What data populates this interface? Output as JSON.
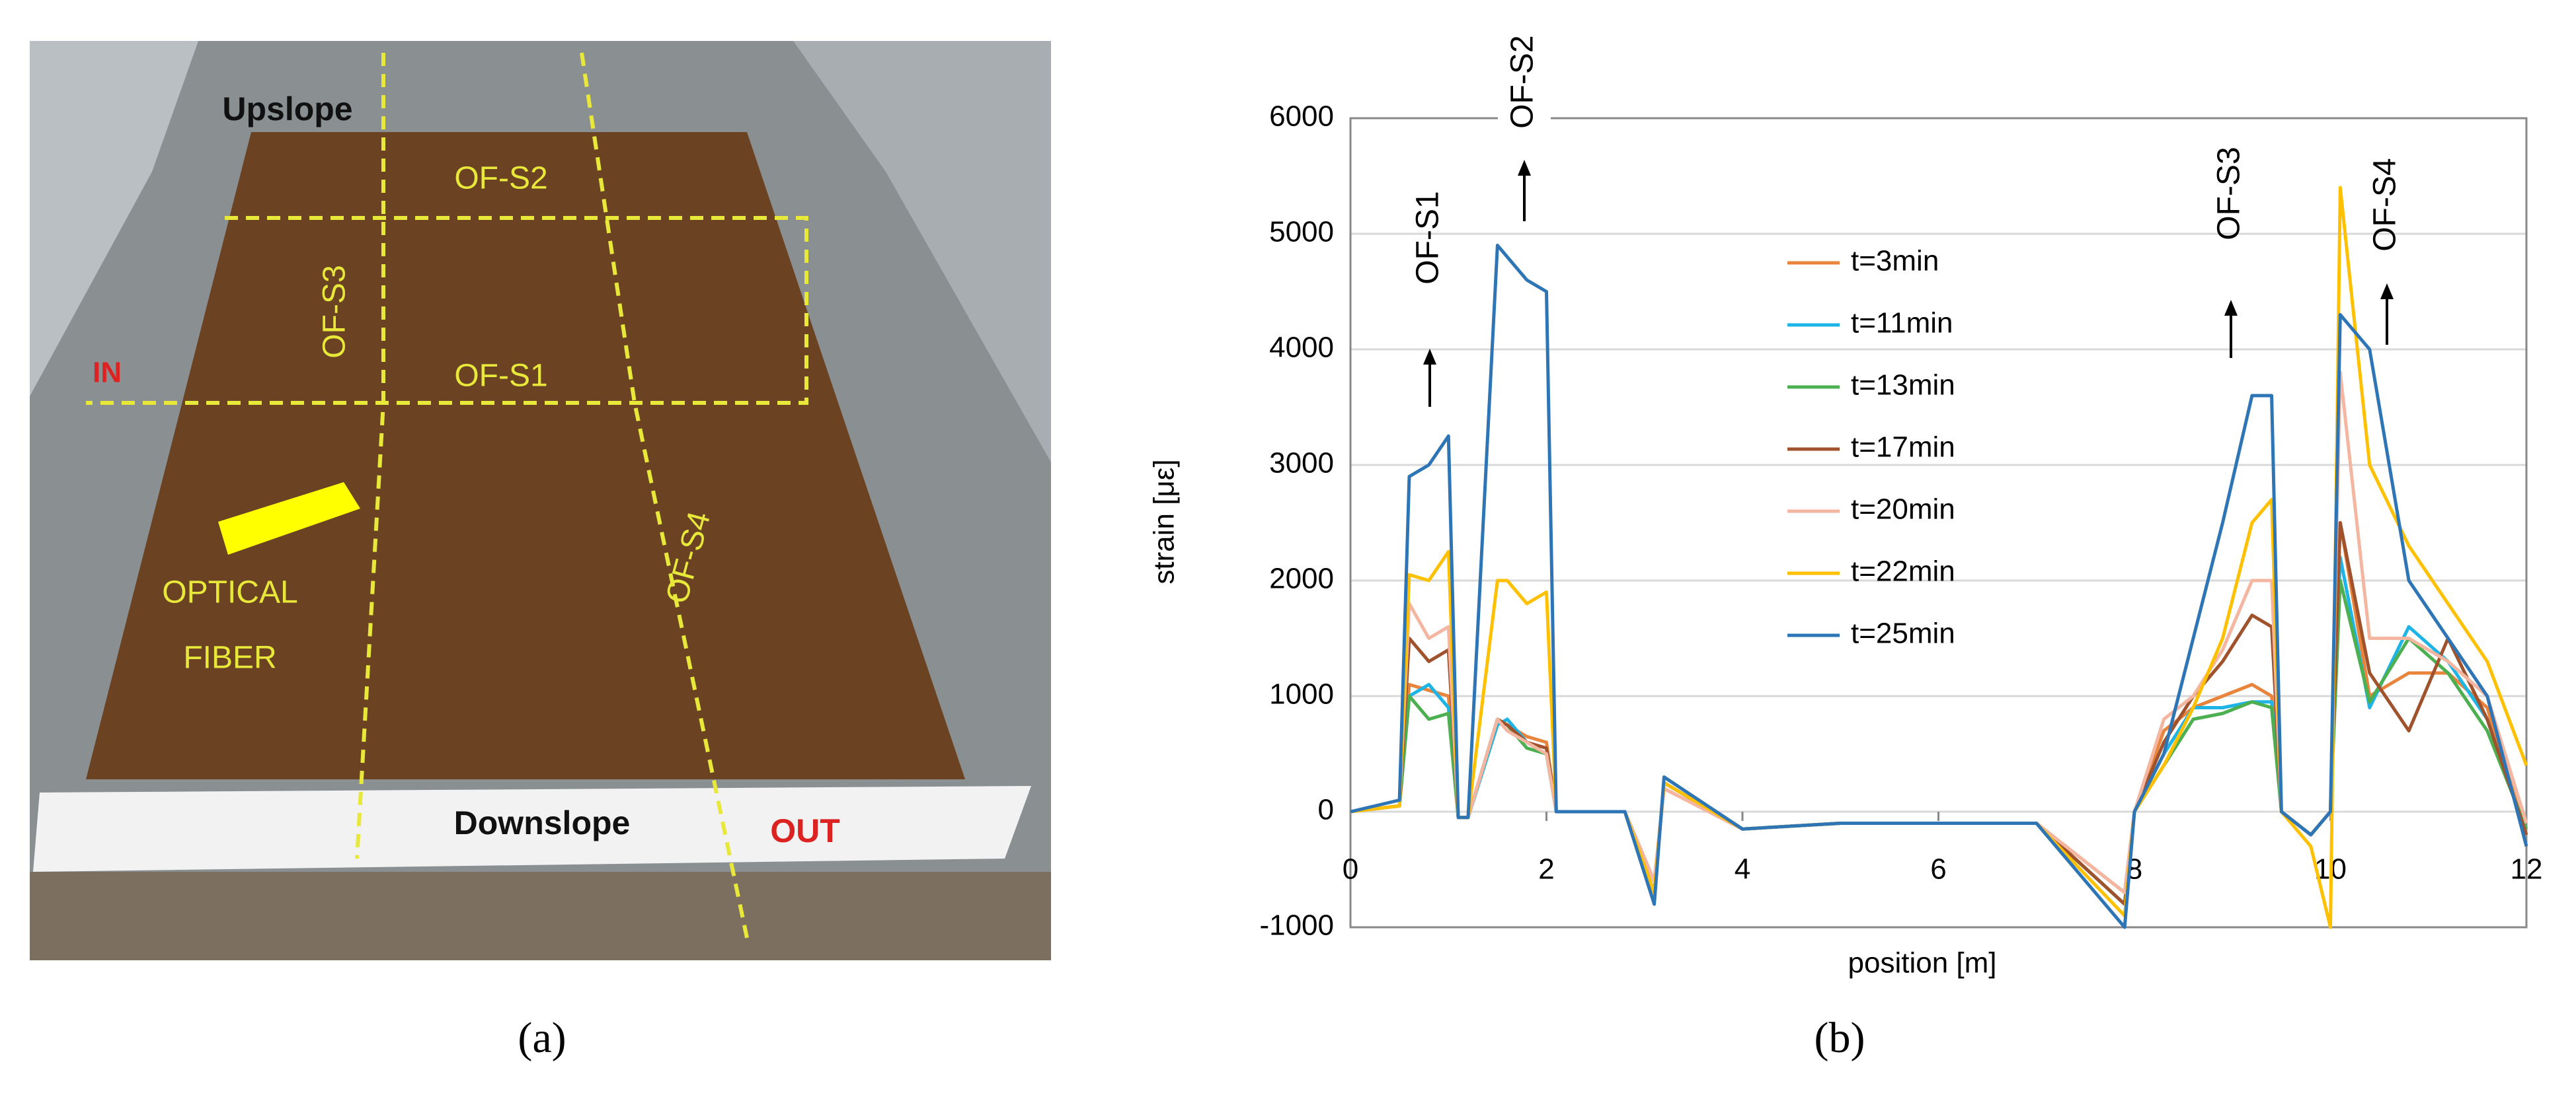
{
  "photo": {
    "caption": "(a)",
    "labels": {
      "upslope": "Upslope",
      "of_s2": "OF-S2",
      "of_s3": "OF-S3",
      "of_s1": "OF-S1",
      "in": "IN",
      "optical": "OPTICAL",
      "fiber": "FIBER",
      "of_s4": "OF-S4",
      "downslope": "Downslope",
      "out": "OUT"
    }
  },
  "chart_data": {
    "type": "line",
    "caption": "(b)",
    "x_label": "position [m]",
    "y_label": "strain [με]",
    "x": [
      0,
      0.5,
      0.6,
      0.8,
      1.0,
      1.1,
      1.2,
      1.5,
      1.6,
      1.8,
      2.0,
      2.1,
      2.2,
      2.8,
      3.1,
      3.2,
      4,
      5,
      6,
      7,
      7.9,
      8.0,
      8.3,
      8.6,
      8.9,
      9.2,
      9.4,
      9.5,
      9.8,
      10.0,
      10.1,
      10.4,
      10.8,
      11.2,
      11.6,
      12
    ],
    "series": [
      {
        "name": "t=3min",
        "color": "#e8843c",
        "values": [
          0,
          50,
          1100,
          1050,
          1000,
          -50,
          -50,
          800,
          750,
          650,
          600,
          0,
          0,
          0,
          -600,
          200,
          -150,
          -100,
          -100,
          -100,
          -700,
          0,
          700,
          900,
          1000,
          1100,
          1000,
          0,
          -200,
          0,
          2500,
          1000,
          1200,
          1200,
          900,
          -200
        ]
      },
      {
        "name": "t=11min",
        "color": "#1fb4e6",
        "values": [
          0,
          50,
          1000,
          1100,
          900,
          -50,
          -50,
          750,
          800,
          600,
          500,
          0,
          0,
          0,
          -700,
          250,
          -150,
          -100,
          -100,
          -100,
          -800,
          0,
          500,
          900,
          900,
          950,
          950,
          0,
          -200,
          0,
          2200,
          900,
          1600,
          1300,
          800,
          -200
        ]
      },
      {
        "name": "t=13min",
        "color": "#4caf50",
        "values": [
          0,
          50,
          1000,
          800,
          850,
          -50,
          -50,
          800,
          750,
          550,
          500,
          0,
          0,
          0,
          -700,
          250,
          -150,
          -100,
          -100,
          -100,
          -800,
          0,
          400,
          800,
          850,
          950,
          900,
          0,
          -200,
          0,
          2000,
          950,
          1500,
          1200,
          700,
          -150
        ]
      },
      {
        "name": "t=17min",
        "color": "#a0522d",
        "values": [
          0,
          50,
          1500,
          1300,
          1400,
          -50,
          -50,
          800,
          750,
          600,
          550,
          0,
          0,
          0,
          -700,
          250,
          -150,
          -100,
          -100,
          -100,
          -800,
          0,
          600,
          1000,
          1300,
          1700,
          1600,
          0,
          -200,
          0,
          2500,
          1200,
          700,
          1500,
          800,
          -200
        ]
      },
      {
        "name": "t=20min",
        "color": "#f4b6a0",
        "values": [
          0,
          50,
          1800,
          1500,
          1600,
          -50,
          -50,
          800,
          700,
          600,
          500,
          0,
          0,
          0,
          -600,
          200,
          -150,
          -100,
          -100,
          -100,
          -700,
          0,
          800,
          1000,
          1400,
          2000,
          2000,
          0,
          -200,
          0,
          3800,
          1500,
          1500,
          1300,
          1000,
          -100
        ]
      },
      {
        "name": "t=22min",
        "color": "#ffc000",
        "values": [
          0,
          50,
          2050,
          2000,
          2250,
          -50,
          -50,
          2000,
          2000,
          1800,
          1900,
          0,
          0,
          0,
          -700,
          250,
          -150,
          -100,
          -100,
          -100,
          -900,
          0,
          400,
          900,
          1500,
          2500,
          2700,
          0,
          -300,
          -1000,
          5400,
          3000,
          2300,
          1800,
          1300,
          400
        ]
      },
      {
        "name": "t=25min",
        "color": "#2e75b6",
        "values": [
          0,
          100,
          2900,
          3000,
          3250,
          -50,
          -50,
          4900,
          4800,
          4600,
          4500,
          0,
          0,
          0,
          -800,
          300,
          -150,
          -100,
          -100,
          -100,
          -1000,
          0,
          500,
          1500,
          2500,
          3600,
          3600,
          0,
          -200,
          0,
          4300,
          4000,
          2000,
          1500,
          1000,
          -300
        ]
      }
    ],
    "xlim": [
      0,
      12
    ],
    "ylim": [
      -1000,
      6000
    ],
    "xticks": [
      0,
      2,
      4,
      6,
      8,
      10,
      12
    ],
    "yticks": [
      -1000,
      0,
      1000,
      2000,
      3000,
      4000,
      5000,
      6000
    ],
    "grid": true,
    "annotations": [
      "OF-S1",
      "OF-S2",
      "OF-S3",
      "OF-S4"
    ]
  }
}
